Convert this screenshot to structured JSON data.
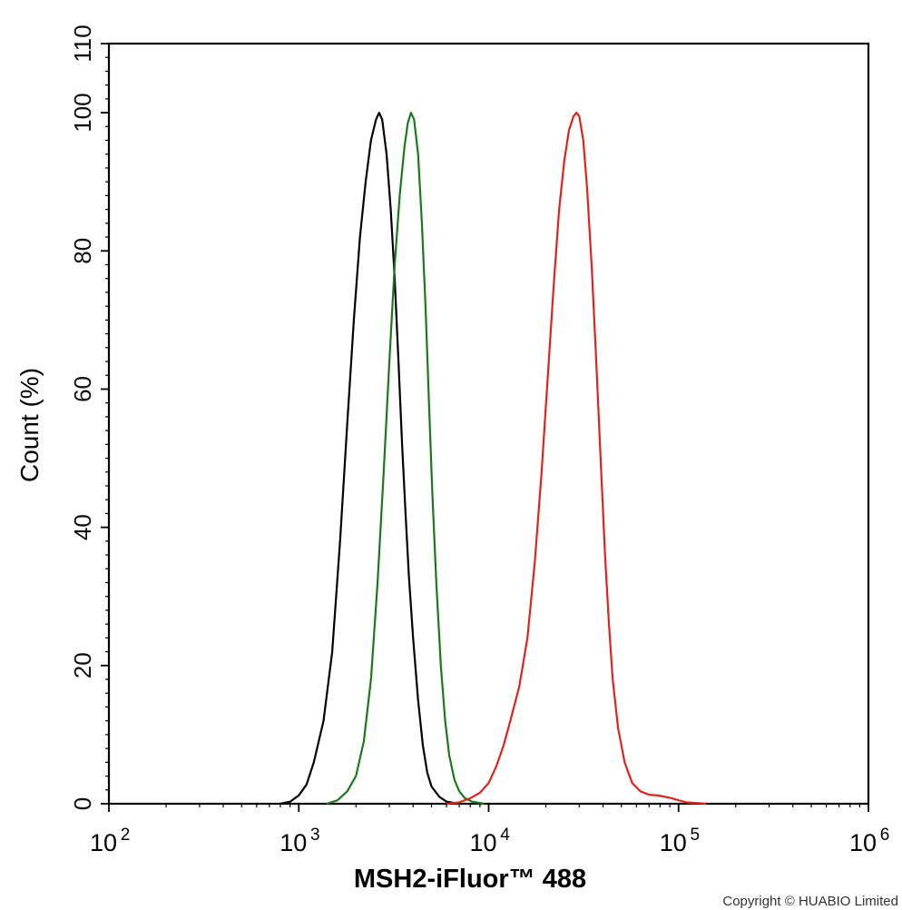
{
  "chart_data": {
    "type": "line",
    "title": "",
    "xlabel": "MSH2-iFluor™ 488",
    "ylabel": "Count  (%)",
    "x_scale": "log",
    "xlim": [
      100,
      1000000
    ],
    "ylim": [
      0,
      110
    ],
    "x_ticks": [
      {
        "value": 100,
        "base": "10",
        "exp": "2"
      },
      {
        "value": 1000,
        "base": "10",
        "exp": "3"
      },
      {
        "value": 10000,
        "base": "10",
        "exp": "4"
      },
      {
        "value": 100000,
        "base": "10",
        "exp": "5"
      },
      {
        "value": 1000000,
        "base": "10",
        "exp": "6"
      }
    ],
    "y_ticks": [
      {
        "value": 0,
        "label": "0"
      },
      {
        "value": 20,
        "label": "20"
      },
      {
        "value": 40,
        "label": "40"
      },
      {
        "value": 60,
        "label": "60"
      },
      {
        "value": 80,
        "label": "80"
      },
      {
        "value": 100,
        "label": "100"
      },
      {
        "value": 110,
        "label": "110"
      }
    ],
    "grid": false,
    "legend": "none",
    "series": [
      {
        "color": "#000000",
        "points": [
          [
            800,
            0
          ],
          [
            900,
            0.3
          ],
          [
            1000,
            1.2
          ],
          [
            1100,
            2.8
          ],
          [
            1200,
            6
          ],
          [
            1350,
            12
          ],
          [
            1500,
            22
          ],
          [
            1650,
            38
          ],
          [
            1800,
            55
          ],
          [
            1950,
            70
          ],
          [
            2100,
            82
          ],
          [
            2250,
            90
          ],
          [
            2400,
            96
          ],
          [
            2550,
            99
          ],
          [
            2650,
            100
          ],
          [
            2750,
            99
          ],
          [
            2900,
            94
          ],
          [
            3050,
            86
          ],
          [
            3200,
            76
          ],
          [
            3350,
            64
          ],
          [
            3500,
            52
          ],
          [
            3650,
            42
          ],
          [
            3800,
            33
          ],
          [
            4000,
            24
          ],
          [
            4250,
            15
          ],
          [
            4500,
            8.5
          ],
          [
            4750,
            4.5
          ],
          [
            5000,
            2.5
          ],
          [
            5500,
            1
          ],
          [
            6000,
            0.3
          ],
          [
            7000,
            0
          ]
        ]
      },
      {
        "color": "#1a7a1a",
        "points": [
          [
            1400,
            0
          ],
          [
            1600,
            0.5
          ],
          [
            1800,
            1.8
          ],
          [
            2000,
            4
          ],
          [
            2200,
            9
          ],
          [
            2400,
            18
          ],
          [
            2600,
            32
          ],
          [
            2800,
            48
          ],
          [
            3000,
            64
          ],
          [
            3200,
            78
          ],
          [
            3400,
            88
          ],
          [
            3600,
            95
          ],
          [
            3750,
            98.5
          ],
          [
            3900,
            100
          ],
          [
            4050,
            99
          ],
          [
            4250,
            94
          ],
          [
            4450,
            84
          ],
          [
            4650,
            72
          ],
          [
            4850,
            58
          ],
          [
            5050,
            45
          ],
          [
            5300,
            32
          ],
          [
            5600,
            20
          ],
          [
            5900,
            12
          ],
          [
            6200,
            7
          ],
          [
            6600,
            3.5
          ],
          [
            7000,
            1.8
          ],
          [
            7500,
            0.8
          ],
          [
            8200,
            0.3
          ],
          [
            9500,
            0
          ]
        ]
      },
      {
        "color": "#e0231c",
        "points": [
          [
            6000,
            0
          ],
          [
            7000,
            0.2
          ],
          [
            8000,
            0.8
          ],
          [
            9000,
            1.6
          ],
          [
            10000,
            3
          ],
          [
            11000,
            5.5
          ],
          [
            12000,
            8.5
          ],
          [
            13000,
            12
          ],
          [
            14500,
            17
          ],
          [
            16000,
            24
          ],
          [
            17500,
            35
          ],
          [
            19000,
            48
          ],
          [
            20500,
            62
          ],
          [
            22000,
            75
          ],
          [
            23500,
            86
          ],
          [
            25000,
            93
          ],
          [
            26500,
            97.5
          ],
          [
            28000,
            99.5
          ],
          [
            29000,
            100
          ],
          [
            30000,
            99.5
          ],
          [
            31500,
            96
          ],
          [
            33000,
            89
          ],
          [
            35000,
            77
          ],
          [
            37000,
            63
          ],
          [
            39000,
            49
          ],
          [
            41000,
            36
          ],
          [
            43000,
            26
          ],
          [
            45000,
            18
          ],
          [
            48000,
            11
          ],
          [
            52000,
            6
          ],
          [
            57000,
            3
          ],
          [
            63000,
            1.8
          ],
          [
            70000,
            1.3
          ],
          [
            78000,
            1.2
          ],
          [
            85000,
            1
          ],
          [
            92000,
            0.8
          ],
          [
            100000,
            0.5
          ],
          [
            110000,
            0.2
          ],
          [
            125000,
            0.1
          ],
          [
            140000,
            0
          ]
        ]
      }
    ]
  },
  "footer": {
    "copyright": "Copyright © HUABIO Limited"
  }
}
